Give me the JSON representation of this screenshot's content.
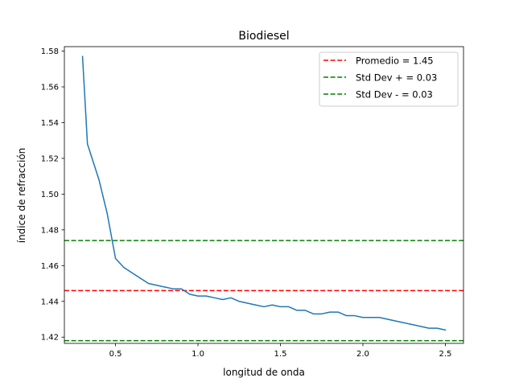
{
  "chart_data": {
    "type": "line",
    "title": "Biodiesel",
    "xlabel": "longitud de onda",
    "ylabel": "índice de refracción",
    "xlim": [
      0.19,
      2.61
    ],
    "ylim": [
      1.4165,
      1.5825
    ],
    "xticks": [
      0.5,
      1.0,
      1.5,
      2.0,
      2.5
    ],
    "xtick_labels": [
      "0.5",
      "1.0",
      "1.5",
      "2.0",
      "2.5"
    ],
    "yticks": [
      1.42,
      1.44,
      1.46,
      1.48,
      1.5,
      1.52,
      1.54,
      1.56,
      1.58
    ],
    "ytick_labels": [
      "1.42",
      "1.44",
      "1.46",
      "1.48",
      "1.50",
      "1.52",
      "1.54",
      "1.56",
      "1.58"
    ],
    "grid": false,
    "legend_position": "top-right",
    "series": [
      {
        "color": "#1f77b4",
        "x": [
          0.3,
          0.33,
          0.4,
          0.45,
          0.5,
          0.55,
          0.6,
          0.7,
          0.8,
          0.85,
          0.9,
          0.95,
          1.0,
          1.05,
          1.1,
          1.15,
          1.2,
          1.25,
          1.3,
          1.35,
          1.4,
          1.45,
          1.5,
          1.55,
          1.6,
          1.65,
          1.7,
          1.75,
          1.8,
          1.85,
          1.9,
          1.95,
          2.0,
          2.05,
          2.1,
          2.2,
          2.3,
          2.4,
          2.45,
          2.5
        ],
        "y": [
          1.577,
          1.528,
          1.508,
          1.489,
          1.464,
          1.459,
          1.456,
          1.45,
          1.448,
          1.447,
          1.447,
          1.444,
          1.443,
          1.443,
          1.442,
          1.441,
          1.442,
          1.44,
          1.439,
          1.438,
          1.437,
          1.438,
          1.437,
          1.437,
          1.435,
          1.435,
          1.433,
          1.433,
          1.434,
          1.434,
          1.432,
          1.432,
          1.431,
          1.431,
          1.431,
          1.429,
          1.427,
          1.425,
          1.425,
          1.424
        ]
      }
    ],
    "reference_lines": [
      {
        "label": "Promedio = 1.45",
        "y": 1.446,
        "color": "#ff0000",
        "style": "dashed"
      },
      {
        "label": "Std Dev + = 0.03",
        "y": 1.474,
        "color": "#008000",
        "style": "dashed"
      },
      {
        "label": "Std Dev - = 0.03",
        "y": 1.418,
        "color": "#008000",
        "style": "dashed"
      }
    ]
  }
}
